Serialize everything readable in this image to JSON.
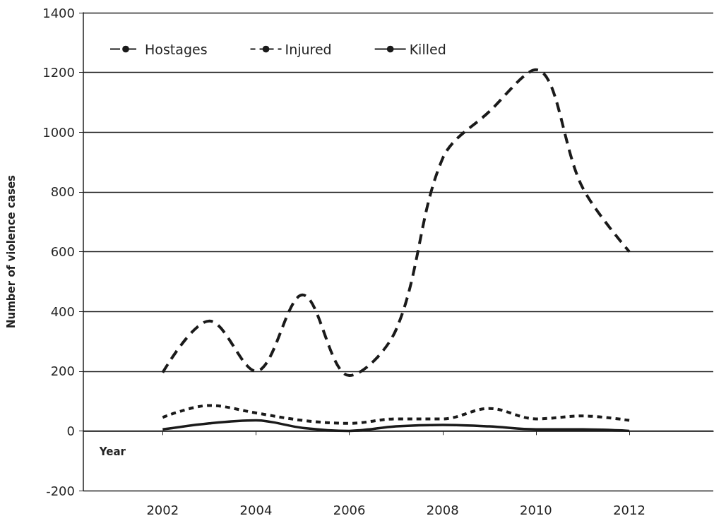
{
  "chart_data": {
    "type": "line",
    "xlabel": "Year",
    "ylabel": "Number of violence cases",
    "x": [
      2002,
      2003,
      2004,
      2005,
      2006,
      2007,
      2008,
      2009,
      2010,
      2011,
      2012
    ],
    "series": [
      {
        "name": "Hostages",
        "color": "#1a1a1a",
        "line_style": "dashed",
        "values": [
          195,
          368,
          200,
          455,
          185,
          338,
          912,
          1069,
          1209,
          814,
          600
        ]
      },
      {
        "name": "Injured",
        "color": "#1a1a1a",
        "line_style": "dotted",
        "values": [
          45,
          85,
          60,
          35,
          25,
          40,
          40,
          75,
          40,
          50,
          35
        ]
      },
      {
        "name": "Killed",
        "color": "#1a1a1a",
        "line_style": "solid",
        "values": [
          5,
          25,
          35,
          10,
          0,
          15,
          20,
          15,
          5,
          5,
          0
        ]
      }
    ],
    "xlim": [
      2000.3,
      2013.8
    ],
    "xticks": [
      2002,
      2004,
      2006,
      2008,
      2010,
      2012
    ],
    "ylim": [
      -200,
      1400
    ],
    "yticks": [
      -200,
      0,
      200,
      400,
      600,
      800,
      1000,
      1200,
      1400
    ],
    "grid": "y",
    "legend": "top left",
    "marker": "none"
  }
}
